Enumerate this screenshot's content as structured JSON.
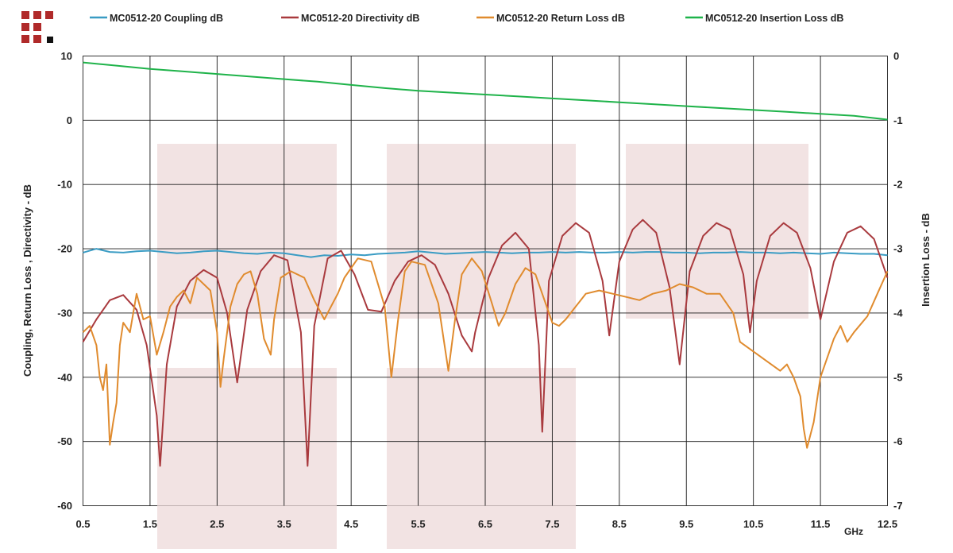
{
  "chart_data": {
    "type": "line",
    "x_unit": "GHz",
    "x_ticks": [
      "0.5",
      "1.5",
      "2.5",
      "3.5",
      "4.5",
      "5.5",
      "6.5",
      "7.5",
      "8.5",
      "9.5",
      "10.5",
      "11.5",
      "12.5"
    ],
    "xlim": [
      0.5,
      12.5
    ],
    "ylabel_left": "Coupling, Return Loss , Directivity - dB",
    "ylim_left": [
      -60,
      10
    ],
    "yticks_left": [
      "10",
      "0",
      "-10",
      "-20",
      "-30",
      "-40",
      "-50",
      "-60"
    ],
    "ylabel_right": "Insertion Loss - dB",
    "ylim_right": [
      -7,
      0
    ],
    "yticks_right": [
      "0",
      "-1",
      "-2",
      "-3",
      "-4",
      "-5",
      "-6",
      "-7"
    ],
    "grid": true,
    "legend_position": "top",
    "series": [
      {
        "name": "MC0512-20 Coupling dB",
        "axis": "left",
        "color": "#3a9cc4",
        "x": [
          0.5,
          0.7,
          0.9,
          1.1,
          1.3,
          1.5,
          1.7,
          1.9,
          2.1,
          2.3,
          2.5,
          2.7,
          2.9,
          3.1,
          3.3,
          3.5,
          3.7,
          3.9,
          4.1,
          4.3,
          4.5,
          4.7,
          4.9,
          5.1,
          5.3,
          5.5,
          5.7,
          5.9,
          6.1,
          6.3,
          6.5,
          6.7,
          6.9,
          7.1,
          7.3,
          7.5,
          7.7,
          7.9,
          8.1,
          8.3,
          8.5,
          8.7,
          8.9,
          9.1,
          9.3,
          9.5,
          9.7,
          9.9,
          10.1,
          10.3,
          10.5,
          10.7,
          10.9,
          11.1,
          11.3,
          11.5,
          11.7,
          11.9,
          12.1,
          12.3,
          12.5
        ],
        "y": [
          -20.6,
          -20.0,
          -20.5,
          -20.6,
          -20.4,
          -20.3,
          -20.5,
          -20.7,
          -20.6,
          -20.4,
          -20.3,
          -20.5,
          -20.7,
          -20.8,
          -20.6,
          -20.7,
          -21.0,
          -21.3,
          -21.0,
          -21.1,
          -20.9,
          -21.0,
          -20.8,
          -20.7,
          -20.6,
          -20.4,
          -20.6,
          -20.8,
          -20.7,
          -20.6,
          -20.5,
          -20.6,
          -20.7,
          -20.6,
          -20.6,
          -20.5,
          -20.6,
          -20.5,
          -20.6,
          -20.6,
          -20.5,
          -20.6,
          -20.5,
          -20.5,
          -20.6,
          -20.6,
          -20.7,
          -20.6,
          -20.6,
          -20.5,
          -20.6,
          -20.6,
          -20.7,
          -20.6,
          -20.7,
          -20.8,
          -20.6,
          -20.7,
          -20.8,
          -20.8,
          -21.0
        ]
      },
      {
        "name": "MC0512-20 Directivity dB",
        "axis": "left",
        "color": "#a93a3e",
        "x": [
          0.5,
          0.7,
          0.9,
          1.1,
          1.3,
          1.45,
          1.6,
          1.65,
          1.75,
          1.9,
          2.1,
          2.3,
          2.5,
          2.65,
          2.8,
          2.95,
          3.15,
          3.35,
          3.55,
          3.75,
          3.85,
          3.95,
          4.15,
          4.35,
          4.55,
          4.75,
          4.95,
          5.15,
          5.35,
          5.55,
          5.75,
          5.95,
          6.15,
          6.3,
          6.35,
          6.55,
          6.75,
          6.95,
          7.15,
          7.3,
          7.35,
          7.45,
          7.65,
          7.85,
          8.05,
          8.25,
          8.35,
          8.5,
          8.7,
          8.85,
          9.05,
          9.25,
          9.4,
          9.55,
          9.75,
          9.95,
          10.15,
          10.35,
          10.45,
          10.55,
          10.75,
          10.95,
          11.15,
          11.35,
          11.5,
          11.7,
          11.9,
          12.1,
          12.3,
          12.5
        ],
        "y": [
          -34.5,
          -31.0,
          -28.0,
          -27.2,
          -29.5,
          -35.0,
          -46.0,
          -53.8,
          -38.0,
          -29.0,
          -25.0,
          -23.3,
          -24.5,
          -30.0,
          -40.8,
          -29.5,
          -23.5,
          -21.0,
          -21.8,
          -33.0,
          -53.8,
          -32.0,
          -21.5,
          -20.3,
          -24.0,
          -29.5,
          -29.8,
          -25.0,
          -22.0,
          -21.0,
          -22.5,
          -27.0,
          -33.5,
          -36.0,
          -33.0,
          -24.5,
          -19.5,
          -17.5,
          -20.0,
          -35.0,
          -48.5,
          -25.0,
          -18.0,
          -16.0,
          -17.5,
          -25.0,
          -33.5,
          -22.0,
          -17.0,
          -15.5,
          -17.5,
          -26.0,
          -38.0,
          -23.5,
          -18.0,
          -16.0,
          -17.0,
          -24.0,
          -33.0,
          -25.0,
          -18.0,
          -16.0,
          -17.5,
          -23.0,
          -31.0,
          -22.0,
          -17.5,
          -16.5,
          -18.5,
          -24.5
        ]
      },
      {
        "name": "MC0512-20 Return Loss dB",
        "axis": "left",
        "color": "#e08b2e",
        "x": [
          0.5,
          0.6,
          0.7,
          0.75,
          0.8,
          0.85,
          0.9,
          0.95,
          1.0,
          1.05,
          1.1,
          1.2,
          1.3,
          1.4,
          1.5,
          1.6,
          1.7,
          1.8,
          1.9,
          2.0,
          2.1,
          2.2,
          2.3,
          2.4,
          2.5,
          2.55,
          2.6,
          2.7,
          2.8,
          2.9,
          3.0,
          3.1,
          3.2,
          3.3,
          3.35,
          3.45,
          3.6,
          3.8,
          3.95,
          4.1,
          4.2,
          4.3,
          4.4,
          4.6,
          4.8,
          5.0,
          5.1,
          5.2,
          5.3,
          5.4,
          5.6,
          5.8,
          5.95,
          6.05,
          6.15,
          6.3,
          6.45,
          6.6,
          6.7,
          6.8,
          6.95,
          7.1,
          7.25,
          7.4,
          7.5,
          7.6,
          7.7,
          7.85,
          8.0,
          8.2,
          8.4,
          8.6,
          8.8,
          9.0,
          9.2,
          9.4,
          9.6,
          9.8,
          10.0,
          10.2,
          10.3,
          10.5,
          10.7,
          10.9,
          11.0,
          11.1,
          11.2,
          11.25,
          11.3,
          11.4,
          11.5,
          11.7,
          11.8,
          11.9,
          12.0,
          12.2,
          12.35,
          12.5
        ],
        "y": [
          -33.0,
          -32.0,
          -35.0,
          -40.0,
          -42.0,
          -38.0,
          -50.5,
          -47.0,
          -44.0,
          -35.0,
          -31.5,
          -33.0,
          -27.0,
          -31.0,
          -30.5,
          -36.5,
          -33.0,
          -29.0,
          -27.5,
          -26.5,
          -28.5,
          -24.5,
          -25.5,
          -26.5,
          -33.0,
          -41.5,
          -37.0,
          -29.0,
          -25.5,
          -24.0,
          -23.5,
          -27.0,
          -34.0,
          -36.5,
          -31.0,
          -24.5,
          -23.5,
          -24.5,
          -28.0,
          -31.0,
          -29.0,
          -27.0,
          -24.5,
          -21.5,
          -22.0,
          -29.0,
          -40.0,
          -31.0,
          -23.5,
          -22.0,
          -22.5,
          -28.5,
          -39.0,
          -31.0,
          -24.0,
          -21.5,
          -23.5,
          -28.5,
          -32.0,
          -30.0,
          -25.5,
          -23.0,
          -24.0,
          -28.5,
          -31.5,
          -32.0,
          -31.0,
          -29.0,
          -27.0,
          -26.5,
          -27.0,
          -27.5,
          -28.0,
          -27.0,
          -26.5,
          -25.5,
          -26.0,
          -27.0,
          -27.0,
          -30.0,
          -34.5,
          -36.0,
          -37.5,
          -39.0,
          -38.0,
          -40.0,
          -43.0,
          -48.0,
          -51.0,
          -47.0,
          -40.0,
          -34.0,
          -32.0,
          -34.5,
          -33.0,
          -30.5,
          -27.0,
          -23.5
        ]
      },
      {
        "name": "MC0512-20 Insertion Loss dB",
        "axis": "right",
        "color": "#1fb34a",
        "x": [
          0.5,
          1.0,
          1.5,
          2.0,
          2.5,
          3.0,
          3.5,
          4.0,
          4.5,
          5.0,
          5.5,
          6.0,
          6.5,
          7.0,
          7.5,
          8.0,
          8.5,
          9.0,
          9.5,
          10.0,
          10.5,
          11.0,
          11.5,
          12.0,
          12.5
        ],
        "y": [
          -0.1,
          -0.15,
          -0.2,
          -0.24,
          -0.28,
          -0.32,
          -0.36,
          -0.4,
          -0.45,
          -0.5,
          -0.54,
          -0.57,
          -0.6,
          -0.63,
          -0.66,
          -0.69,
          -0.72,
          -0.75,
          -0.78,
          -0.81,
          -0.84,
          -0.87,
          -0.9,
          -0.93,
          -0.99
        ]
      }
    ]
  }
}
